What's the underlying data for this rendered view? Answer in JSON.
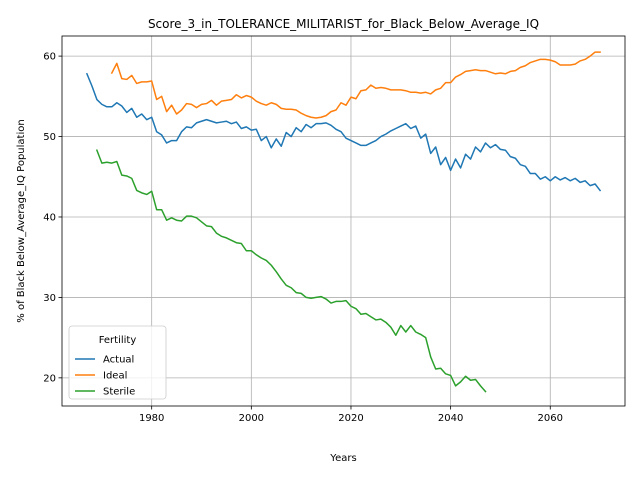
{
  "chart_data": {
    "type": "line",
    "title": "Score_3_in_TOLERANCE_MILITARIST_for_Black_Below_Average_IQ",
    "xlabel": "Years",
    "ylabel": "% of Black Below_Average_IQ Population",
    "xlim": [
      1962,
      2075
    ],
    "ylim": [
      16.5,
      62.5
    ],
    "xticks": [
      1980,
      2000,
      2020,
      2040,
      2060
    ],
    "yticks": [
      20,
      30,
      40,
      50,
      60
    ],
    "grid": true,
    "legend": {
      "title": "Fertility",
      "placement": "lower-left"
    },
    "series": [
      {
        "name": "Actual",
        "color": "#1f77b4",
        "x": [
          1967,
          1968,
          1969,
          1970,
          1971,
          1972,
          1973,
          1974,
          1975,
          1976,
          1977,
          1978,
          1979,
          1980,
          1981,
          1982,
          1983,
          1984,
          1985,
          1986,
          1987,
          1988,
          1989,
          1990,
          1991,
          1992,
          1993,
          1994,
          1995,
          1996,
          1997,
          1998,
          1999,
          2000,
          2001,
          2002,
          2003,
          2004,
          2005,
          2006,
          2007,
          2008,
          2009,
          2010,
          2011,
          2012,
          2013,
          2014,
          2015,
          2016,
          2017,
          2018,
          2019,
          2020,
          2021,
          2022,
          2023,
          2024,
          2025,
          2026,
          2027,
          2028,
          2029,
          2030,
          2031,
          2032,
          2033,
          2034,
          2035,
          2036,
          2037,
          2038,
          2039,
          2040,
          2041,
          2042,
          2043,
          2044,
          2045,
          2046,
          2047,
          2048,
          2049,
          2050,
          2051,
          2052,
          2053,
          2054,
          2055,
          2056,
          2057,
          2058,
          2059,
          2060,
          2061,
          2062,
          2063,
          2064,
          2065,
          2066,
          2067,
          2068,
          2069,
          2070
        ],
        "y": [
          57.8,
          56.3,
          54.6,
          54.0,
          53.7,
          53.7,
          54.2,
          53.8,
          53.0,
          53.5,
          52.4,
          52.8,
          52.1,
          52.4,
          50.6,
          50.2,
          49.2,
          49.5,
          49.5,
          50.6,
          51.2,
          51.1,
          51.7,
          51.9,
          52.1,
          51.9,
          51.7,
          51.8,
          51.9,
          51.6,
          51.8,
          51.0,
          51.2,
          50.8,
          50.9,
          49.5,
          50.0,
          48.6,
          49.7,
          48.8,
          50.5,
          50.0,
          51.1,
          50.6,
          51.5,
          51.1,
          51.6,
          51.6,
          51.7,
          51.4,
          50.9,
          50.6,
          49.8,
          49.5,
          49.2,
          48.9,
          48.9,
          49.2,
          49.5,
          50.0,
          50.3,
          50.7,
          51.0,
          51.3,
          51.6,
          51.0,
          51.3,
          49.8,
          50.3,
          47.9,
          48.7,
          46.5,
          47.4,
          45.8,
          47.2,
          46.1,
          47.8,
          47.2,
          48.7,
          48.1,
          49.2,
          48.6,
          49.0,
          48.4,
          48.3,
          47.5,
          47.3,
          46.5,
          46.3,
          45.4,
          45.4,
          44.7,
          45.0,
          44.5,
          45.0,
          44.6,
          44.9,
          44.5,
          44.8,
          44.3,
          44.5,
          43.9,
          44.1,
          43.3
        ]
      },
      {
        "name": "Ideal",
        "color": "#ff7f0e",
        "x": [
          1972,
          1973,
          1974,
          1975,
          1976,
          1977,
          1978,
          1979,
          1980,
          1981,
          1982,
          1983,
          1984,
          1985,
          1986,
          1987,
          1988,
          1989,
          1990,
          1991,
          1992,
          1993,
          1994,
          1995,
          1996,
          1997,
          1998,
          1999,
          2000,
          2001,
          2002,
          2003,
          2004,
          2005,
          2006,
          2007,
          2008,
          2009,
          2010,
          2011,
          2012,
          2013,
          2014,
          2015,
          2016,
          2017,
          2018,
          2019,
          2020,
          2021,
          2022,
          2023,
          2024,
          2025,
          2026,
          2027,
          2028,
          2029,
          2030,
          2031,
          2032,
          2033,
          2034,
          2035,
          2036,
          2037,
          2038,
          2039,
          2040,
          2041,
          2042,
          2043,
          2044,
          2045,
          2046,
          2047,
          2048,
          2049,
          2050,
          2051,
          2052,
          2053,
          2054,
          2055,
          2056,
          2057,
          2058,
          2059,
          2060,
          2061,
          2062,
          2063,
          2064,
          2065,
          2066,
          2067,
          2068,
          2069,
          2070
        ],
        "y": [
          57.9,
          59.1,
          57.2,
          57.1,
          57.6,
          56.6,
          56.8,
          56.8,
          56.9,
          54.6,
          55.0,
          53.1,
          53.9,
          52.8,
          53.3,
          54.1,
          54.0,
          53.6,
          54.0,
          54.1,
          54.5,
          53.9,
          54.4,
          54.5,
          54.6,
          55.2,
          54.8,
          55.1,
          54.9,
          54.4,
          54.1,
          53.9,
          54.2,
          54.0,
          53.5,
          53.4,
          53.4,
          53.3,
          52.9,
          52.6,
          52.4,
          52.3,
          52.4,
          52.6,
          53.1,
          53.3,
          54.2,
          53.9,
          54.9,
          54.7,
          55.7,
          55.8,
          56.4,
          56.0,
          56.1,
          56.0,
          55.8,
          55.8,
          55.8,
          55.7,
          55.5,
          55.5,
          55.4,
          55.5,
          55.3,
          55.8,
          56.0,
          56.7,
          56.7,
          57.4,
          57.7,
          58.1,
          58.2,
          58.3,
          58.2,
          58.2,
          58.0,
          57.8,
          57.9,
          57.8,
          58.1,
          58.2,
          58.6,
          58.8,
          59.2,
          59.4,
          59.6,
          59.6,
          59.5,
          59.3,
          58.9,
          58.9,
          58.9,
          59.0,
          59.4,
          59.6,
          60.0,
          60.5,
          60.5
        ]
      },
      {
        "name": "Sterile",
        "color": "#2ca02c",
        "x": [
          1969,
          1970,
          1971,
          1972,
          1973,
          1974,
          1975,
          1976,
          1977,
          1978,
          1979,
          1980,
          1981,
          1982,
          1983,
          1984,
          1985,
          1986,
          1987,
          1988,
          1989,
          1990,
          1991,
          1992,
          1993,
          1994,
          1995,
          1996,
          1997,
          1998,
          1999,
          2000,
          2001,
          2002,
          2003,
          2004,
          2005,
          2006,
          2007,
          2008,
          2009,
          2010,
          2011,
          2012,
          2013,
          2014,
          2015,
          2016,
          2017,
          2018,
          2019,
          2020,
          2021,
          2022,
          2023,
          2024,
          2025,
          2026,
          2027,
          2028,
          2029,
          2030,
          2031,
          2032,
          2033,
          2034,
          2035,
          2036,
          2037,
          2038,
          2039,
          2040,
          2041,
          2042,
          2043,
          2044,
          2045,
          2046,
          2047
        ],
        "y": [
          48.3,
          46.7,
          46.8,
          46.7,
          46.9,
          45.2,
          45.1,
          44.8,
          43.3,
          43.0,
          42.8,
          43.2,
          40.9,
          40.9,
          39.6,
          39.9,
          39.6,
          39.5,
          40.1,
          40.1,
          39.9,
          39.4,
          38.9,
          38.8,
          38.0,
          37.6,
          37.4,
          37.1,
          36.8,
          36.7,
          35.8,
          35.8,
          35.3,
          34.9,
          34.6,
          34.0,
          33.2,
          32.3,
          31.5,
          31.2,
          30.6,
          30.5,
          30.0,
          29.9,
          30.0,
          30.1,
          29.8,
          29.3,
          29.5,
          29.5,
          29.6,
          28.9,
          28.6,
          27.9,
          28.0,
          27.6,
          27.2,
          27.3,
          26.9,
          26.3,
          25.3,
          26.5,
          25.7,
          26.5,
          25.7,
          25.4,
          25.0,
          22.6,
          21.1,
          21.2,
          20.5,
          20.3,
          19.0,
          19.5,
          20.2,
          19.7,
          19.8,
          19.0,
          18.3
        ]
      }
    ]
  }
}
